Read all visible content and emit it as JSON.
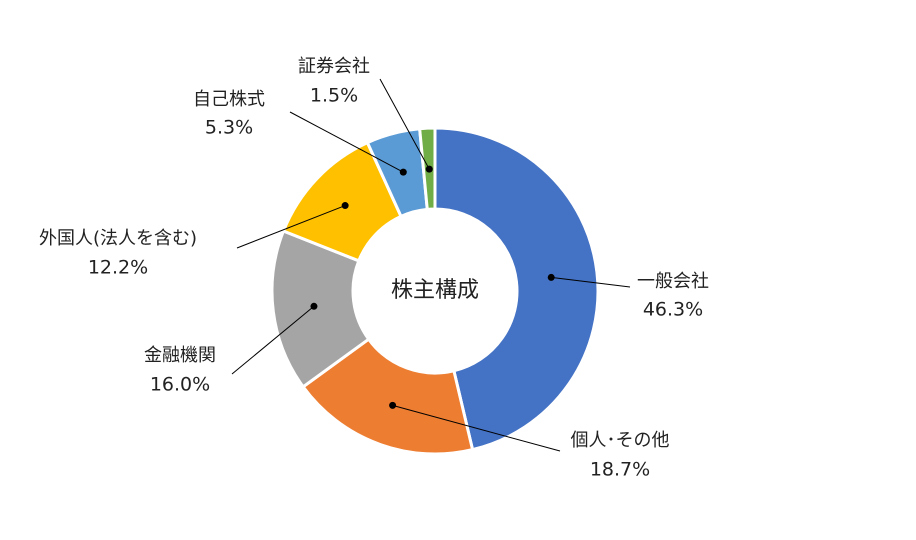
{
  "chart_data": {
    "type": "pie",
    "variant": "donut",
    "center_title": "株主構成",
    "slices": [
      {
        "label": "一般会社",
        "value": 46.3,
        "value_label": "46.3%",
        "color": "#4472C4"
      },
      {
        "label": "個人･その他",
        "value": 18.7,
        "value_label": "18.7%",
        "color": "#ED7D31"
      },
      {
        "label": "金融機関",
        "value": 16.0,
        "value_label": "16.0%",
        "color": "#A5A5A5"
      },
      {
        "label": "外国人(法人を含む)",
        "value": 12.2,
        "value_label": "12.2%",
        "color": "#FFC000"
      },
      {
        "label": "自己株式",
        "value": 5.3,
        "value_label": "5.3%",
        "color": "#5B9BD5"
      },
      {
        "label": "証券会社",
        "value": 1.5,
        "value_label": "1.5%",
        "color": "#70AD47"
      }
    ]
  }
}
